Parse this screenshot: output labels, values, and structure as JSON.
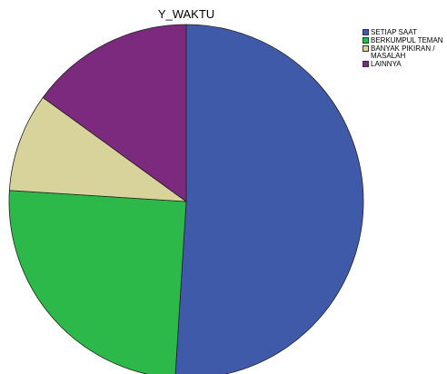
{
  "chart_data": {
    "type": "pie",
    "title": "Y_WAKTU",
    "categories": [
      "SETIAP SAAT",
      "BERKUMPUL TEMAN",
      "BANYAK PIKIRAN / MASALAH",
      "LAINNYA"
    ],
    "values": [
      51,
      25,
      9,
      15
    ],
    "colors": [
      "#3f5aa9",
      "#2db84a",
      "#d8d29b",
      "#7b2a7d"
    ],
    "legend": "right"
  }
}
